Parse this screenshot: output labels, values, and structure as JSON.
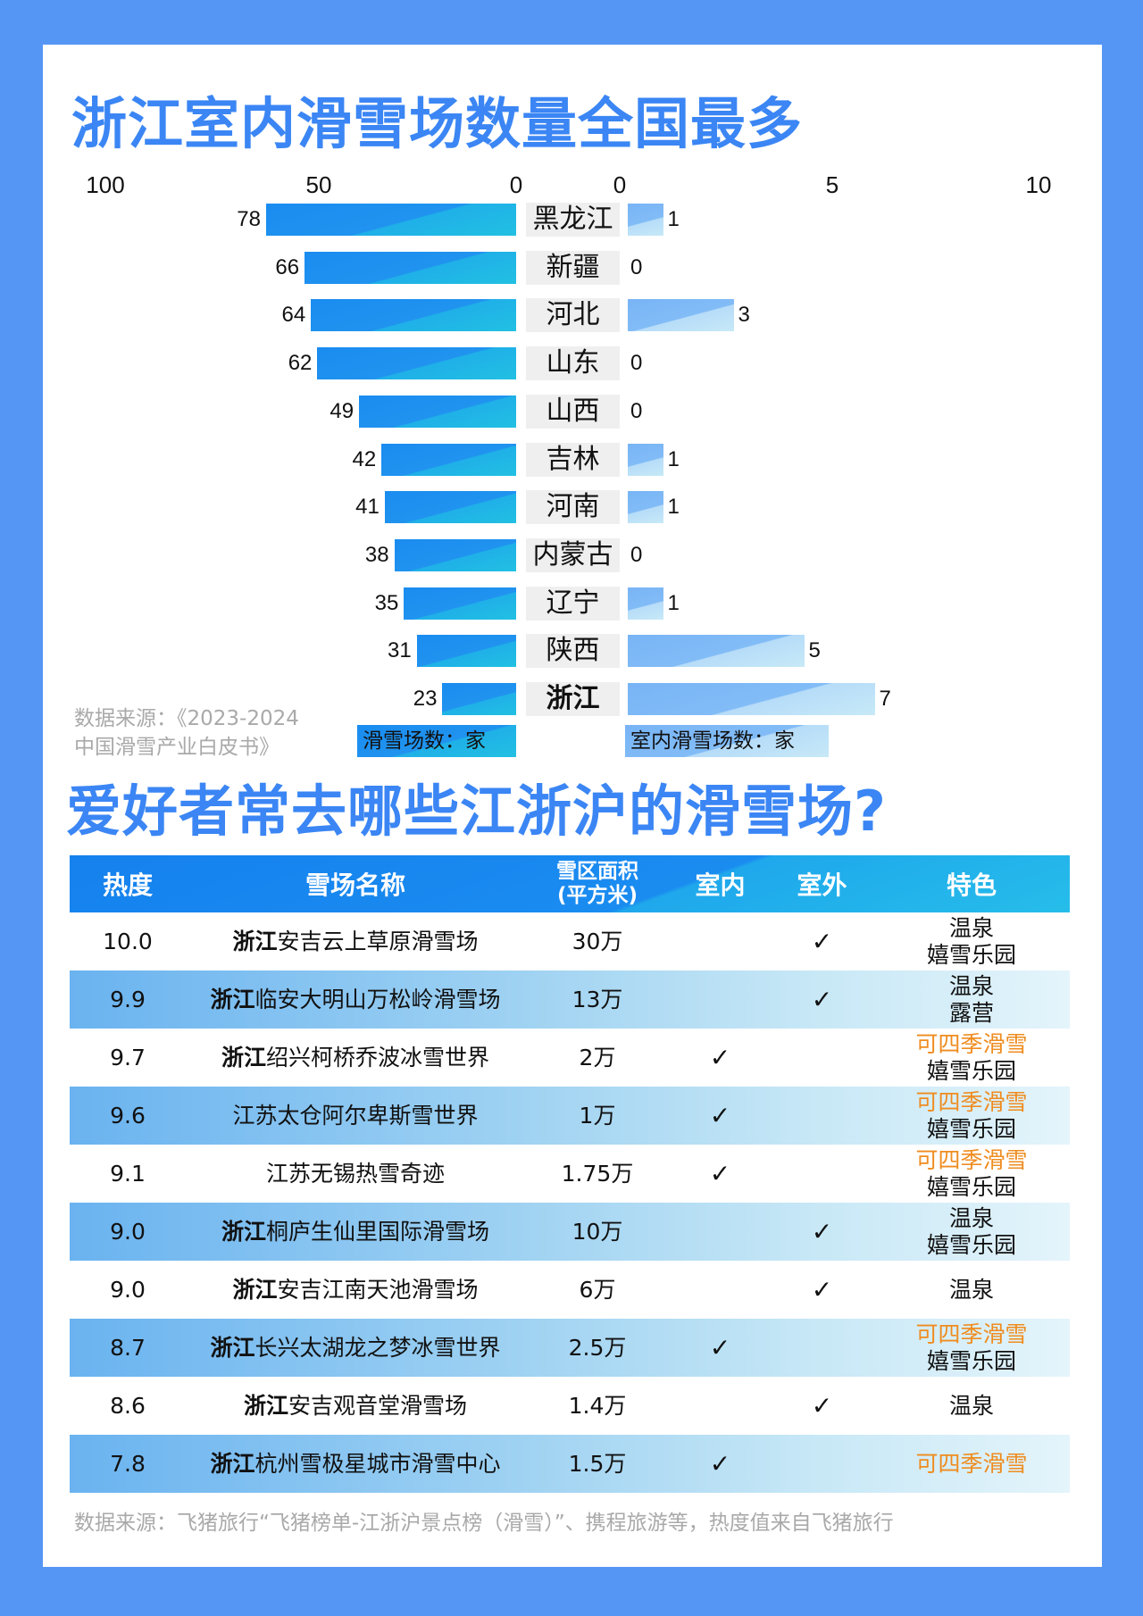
{
  "titles": {
    "chart": "浙江室内滑雪场数量全国最多",
    "table": "爱好者常去哪些江浙沪的滑雪场?"
  },
  "chart_data": {
    "type": "bar",
    "categories": [
      "黑龙江",
      "新疆",
      "河北",
      "山东",
      "山西",
      "吉林",
      "河南",
      "内蒙古",
      "辽宁",
      "陕西",
      "浙江"
    ],
    "series": [
      {
        "name": "滑雪场数：家",
        "values": [
          78,
          66,
          64,
          62,
          49,
          42,
          41,
          38,
          35,
          31,
          23
        ]
      },
      {
        "name": "室内滑雪场数：家",
        "values": [
          1,
          0,
          3,
          0,
          0,
          1,
          1,
          0,
          1,
          5,
          7
        ]
      }
    ],
    "left_axis": {
      "range": [
        0,
        100
      ],
      "ticks": [
        "100",
        "50",
        "0"
      ],
      "reversed": true
    },
    "right_axis": {
      "range": [
        0,
        10
      ],
      "ticks": [
        "0",
        "5",
        "10"
      ]
    },
    "highlight": "浙江",
    "colors": {
      "left": "#1a8cf0",
      "right": "#82bcf7"
    }
  },
  "chart_source": {
    "line1": "数据来源：《2023-2024",
    "line2": "中国滑雪产业白皮书》"
  },
  "table": {
    "headers": {
      "heat": "热度",
      "name": "雪场名称",
      "area_line1": "雪区面积",
      "area_line2": "(平方米)",
      "indoor": "室内",
      "outdoor": "室外",
      "feature": "特色"
    },
    "check": "✓",
    "rows": [
      {
        "heat": "10.0",
        "prefix": "浙江",
        "name": "安吉云上草原滑雪场",
        "area": "30万",
        "indoor": false,
        "outdoor": true,
        "features": [
          "温泉",
          "嬉雪乐园"
        ]
      },
      {
        "heat": "9.9",
        "prefix": "浙江",
        "name": "临安大明山万松岭滑雪场",
        "area": "13万",
        "indoor": false,
        "outdoor": true,
        "features": [
          "温泉",
          "露营"
        ]
      },
      {
        "heat": "9.7",
        "prefix": "浙江",
        "name": "绍兴柯桥乔波冰雪世界",
        "area": "2万",
        "indoor": true,
        "outdoor": false,
        "features": [
          "可四季滑雪",
          "嬉雪乐园"
        ]
      },
      {
        "heat": "9.6",
        "prefix": "",
        "name": "江苏太仓阿尔卑斯雪世界",
        "area": "1万",
        "indoor": true,
        "outdoor": false,
        "features": [
          "可四季滑雪",
          "嬉雪乐园"
        ]
      },
      {
        "heat": "9.1",
        "prefix": "",
        "name": "江苏无锡热雪奇迹",
        "area": "1.75万",
        "indoor": true,
        "outdoor": false,
        "features": [
          "可四季滑雪",
          "嬉雪乐园"
        ]
      },
      {
        "heat": "9.0",
        "prefix": "浙江",
        "name": "桐庐生仙里国际滑雪场",
        "area": "10万",
        "indoor": false,
        "outdoor": true,
        "features": [
          "温泉",
          "嬉雪乐园"
        ]
      },
      {
        "heat": "9.0",
        "prefix": "浙江",
        "name": "安吉江南天池滑雪场",
        "area": "6万",
        "indoor": false,
        "outdoor": true,
        "features": [
          "温泉"
        ]
      },
      {
        "heat": "8.7",
        "prefix": "浙江",
        "name": "长兴太湖龙之梦冰雪世界",
        "area": "2.5万",
        "indoor": true,
        "outdoor": false,
        "features": [
          "可四季滑雪",
          "嬉雪乐园"
        ]
      },
      {
        "heat": "8.6",
        "prefix": "浙江",
        "name": "安吉观音堂滑雪场",
        "area": "1.4万",
        "indoor": false,
        "outdoor": true,
        "features": [
          "温泉"
        ]
      },
      {
        "heat": "7.8",
        "prefix": "浙江",
        "name": "杭州雪极星城市滑雪中心",
        "area": "1.5万",
        "indoor": true,
        "outdoor": false,
        "features": [
          "可四季滑雪"
        ]
      }
    ],
    "orange_feature": "可四季滑雪",
    "colors": {
      "feature_highlight": "#ef8c1f",
      "header": "#1a8cf0"
    }
  },
  "table_source": "数据来源：飞猪旅行“飞猪榜单-江浙沪景点榜（滑雪）”、携程旅游等，热度值来自飞猪旅行"
}
